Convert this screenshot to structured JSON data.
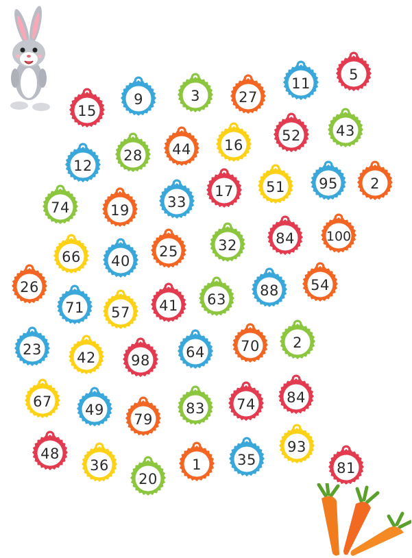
{
  "colors": {
    "red": "#e23a4e",
    "blue": "#3aa7db",
    "green": "#8cc63f",
    "orange": "#f26522",
    "yellow": "#fcd116"
  },
  "decor": {
    "bunny": "bunny-icon",
    "carrots": "carrots-icon"
  },
  "tags": [
    {
      "n": "15",
      "color": "red"
    },
    {
      "n": "9",
      "color": "blue"
    },
    {
      "n": "3",
      "color": "green"
    },
    {
      "n": "27",
      "color": "orange"
    },
    {
      "n": "11",
      "color": "blue"
    },
    {
      "n": "5",
      "color": "red"
    },
    {
      "n": "12",
      "color": "blue"
    },
    {
      "n": "28",
      "color": "green"
    },
    {
      "n": "44",
      "color": "orange"
    },
    {
      "n": "16",
      "color": "yellow"
    },
    {
      "n": "52",
      "color": "red"
    },
    {
      "n": "43",
      "color": "green"
    },
    {
      "n": "74",
      "color": "green"
    },
    {
      "n": "19",
      "color": "orange"
    },
    {
      "n": "33",
      "color": "blue"
    },
    {
      "n": "17",
      "color": "red"
    },
    {
      "n": "51",
      "color": "yellow"
    },
    {
      "n": "95",
      "color": "blue"
    },
    {
      "n": "2",
      "color": "orange"
    },
    {
      "n": "66",
      "color": "yellow"
    },
    {
      "n": "40",
      "color": "blue"
    },
    {
      "n": "25",
      "color": "orange"
    },
    {
      "n": "32",
      "color": "green"
    },
    {
      "n": "84",
      "color": "red"
    },
    {
      "n": "100",
      "color": "orange"
    },
    {
      "n": "26",
      "color": "orange"
    },
    {
      "n": "71",
      "color": "blue"
    },
    {
      "n": "57",
      "color": "yellow"
    },
    {
      "n": "41",
      "color": "red"
    },
    {
      "n": "63",
      "color": "green"
    },
    {
      "n": "88",
      "color": "blue"
    },
    {
      "n": "54",
      "color": "orange"
    },
    {
      "n": "23",
      "color": "blue"
    },
    {
      "n": "42",
      "color": "yellow"
    },
    {
      "n": "98",
      "color": "red"
    },
    {
      "n": "64",
      "color": "blue"
    },
    {
      "n": "70",
      "color": "orange"
    },
    {
      "n": "2",
      "color": "green"
    },
    {
      "n": "67",
      "color": "yellow"
    },
    {
      "n": "49",
      "color": "blue"
    },
    {
      "n": "79",
      "color": "orange"
    },
    {
      "n": "83",
      "color": "green"
    },
    {
      "n": "74",
      "color": "red"
    },
    {
      "n": "84",
      "color": "red"
    },
    {
      "n": "48",
      "color": "red"
    },
    {
      "n": "36",
      "color": "yellow"
    },
    {
      "n": "20",
      "color": "green"
    },
    {
      "n": "1",
      "color": "orange"
    },
    {
      "n": "35",
      "color": "blue"
    },
    {
      "n": "93",
      "color": "yellow"
    },
    {
      "n": "81",
      "color": "red"
    }
  ]
}
